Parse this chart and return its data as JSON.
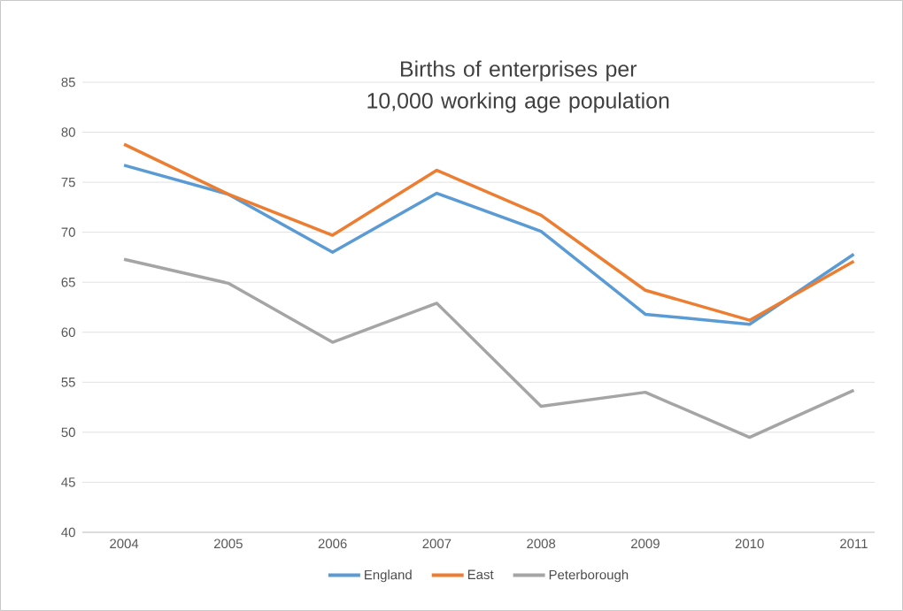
{
  "chart_data": {
    "type": "line",
    "title": "Births of enterprises per 10,000 working age population",
    "categories": [
      "2004",
      "2005",
      "2006",
      "2007",
      "2008",
      "2009",
      "2010",
      "2011"
    ],
    "series": [
      {
        "name": "England",
        "color": "#5b9bd5",
        "values": [
          76.7,
          73.8,
          68.0,
          73.9,
          70.1,
          61.8,
          60.8,
          67.8
        ]
      },
      {
        "name": "East",
        "color": "#ed7d31",
        "values": [
          78.8,
          73.8,
          69.7,
          76.2,
          71.7,
          64.2,
          61.2,
          67.1
        ]
      },
      {
        "name": "Peterborough",
        "color": "#a5a5a5",
        "values": [
          67.3,
          64.9,
          59.0,
          62.9,
          52.6,
          54.0,
          49.5,
          54.2
        ]
      }
    ],
    "ylim": [
      40,
      85
    ],
    "yticks": [
      40,
      45,
      50,
      55,
      60,
      65,
      70,
      75,
      80,
      85
    ],
    "grid": "y",
    "legend": "bottom",
    "marker": "none",
    "line_style": "solid"
  }
}
